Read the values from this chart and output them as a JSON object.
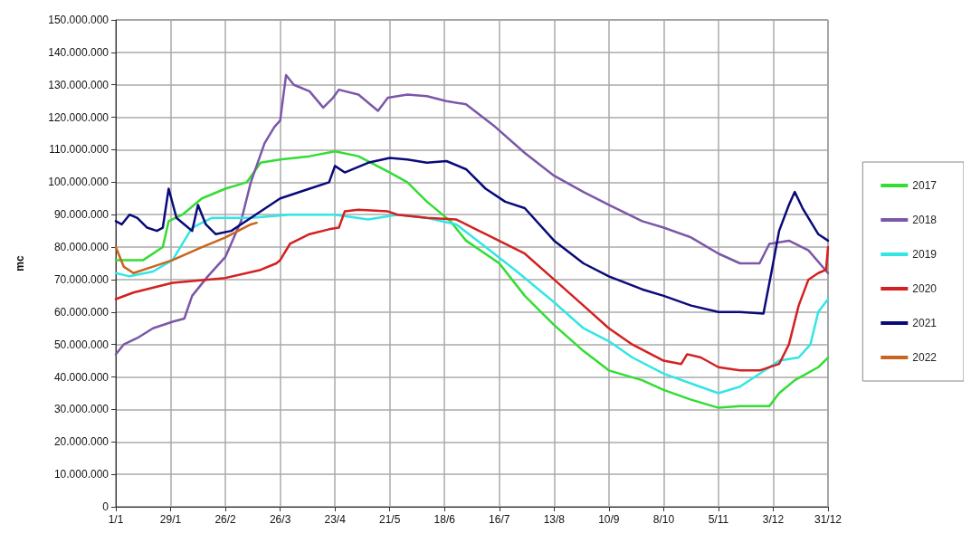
{
  "chart_data": {
    "type": "line",
    "ylabel": "mc",
    "grid": true,
    "legend": "right",
    "marker": "none",
    "line_style": "solid",
    "xlim": [
      "--01-01",
      "--12-31"
    ],
    "xticks": [
      {
        "value": "--01-01",
        "label": "1/1"
      },
      {
        "value": "--01-29",
        "label": "29/1"
      },
      {
        "value": "--02-26",
        "label": "26/2"
      },
      {
        "value": "--03-26",
        "label": "26/3"
      },
      {
        "value": "--04-23",
        "label": "23/4"
      },
      {
        "value": "--05-21",
        "label": "21/5"
      },
      {
        "value": "--06-18",
        "label": "18/6"
      },
      {
        "value": "--07-16",
        "label": "16/7"
      },
      {
        "value": "--08-13",
        "label": "13/8"
      },
      {
        "value": "--09-10",
        "label": "10/9"
      },
      {
        "value": "--10-08",
        "label": "8/10"
      },
      {
        "value": "--11-05",
        "label": "5/11"
      },
      {
        "value": "--12-03",
        "label": "3/12"
      },
      {
        "value": "--12-31",
        "label": "31/12"
      }
    ],
    "ylim": [
      0,
      150000000
    ],
    "yticks": [
      0,
      {
        "value": 10000000,
        "label": "10.000.000"
      },
      {
        "value": 20000000,
        "label": "20.000.000"
      },
      {
        "value": 30000000,
        "label": "30.000.000"
      },
      {
        "value": 40000000,
        "label": "40.000.000"
      },
      {
        "value": 50000000,
        "label": "50.000.000"
      },
      {
        "value": 60000000,
        "label": "60.000.000"
      },
      {
        "value": 70000000,
        "label": "70.000.000"
      },
      {
        "value": 80000000,
        "label": "80.000.000"
      },
      {
        "value": 90000000,
        "label": "90.000.000"
      },
      {
        "value": 100000000,
        "label": "100.000.000"
      },
      {
        "value": 110000000,
        "label": "110.000.000"
      },
      {
        "value": 120000000,
        "label": "120.000.000"
      },
      {
        "value": 130000000,
        "label": "130.000.000"
      },
      {
        "value": 140000000,
        "label": "140.000.000"
      },
      {
        "value": 150000000,
        "label": "150.000.000"
      }
    ],
    "series": [
      {
        "name": "2017",
        "color": "#33dd33",
        "x": [
          "--01-01",
          "--01-10",
          "--01-15",
          "--01-25",
          "--01-28",
          "--02-04",
          "--02-14",
          "--02-26",
          "--03-09",
          "--03-16",
          "--03-26",
          "--04-10",
          "--04-23",
          "--05-05",
          "--05-21",
          "--05-30",
          "--06-09",
          "--06-21",
          "--06-29",
          "--07-16",
          "--07-29",
          "--08-13",
          "--08-28",
          "--09-10",
          "--09-27",
          "--10-08",
          "--10-22",
          "--11-05",
          "--11-16",
          "--12-01",
          "--12-06",
          "--12-14",
          "--12-26",
          "--12-31"
        ],
        "values": [
          76000000,
          76000000,
          76000000,
          80000000,
          88000000,
          90000000,
          95000000,
          98000000,
          100000000,
          106000000,
          107000000,
          108000000,
          109500000,
          108000000,
          103000000,
          100000000,
          94000000,
          88000000,
          82000000,
          75000000,
          65000000,
          56000000,
          48000000,
          42000000,
          39000000,
          36000000,
          33000000,
          30500000,
          31000000,
          31000000,
          35000000,
          39000000,
          43000000,
          46000000
        ]
      },
      {
        "name": "2018",
        "color": "#7b57a8",
        "x": [
          "--01-01",
          "--01-05",
          "--01-12",
          "--01-20",
          "--01-30",
          "--02-05",
          "--02-09",
          "--02-17",
          "--02-26",
          "--03-06",
          "--03-11",
          "--03-18",
          "--03-23",
          "--03-26",
          "--03-29",
          "--04-02",
          "--04-10",
          "--04-17",
          "--04-22",
          "--04-25",
          "--05-05",
          "--05-15",
          "--05-20",
          "--05-30",
          "--06-09",
          "--06-19",
          "--06-29",
          "--07-14",
          "--07-29",
          "--08-13",
          "--08-28",
          "--09-10",
          "--09-27",
          "--10-08",
          "--10-22",
          "--11-05",
          "--11-16",
          "--11-26",
          "--12-01",
          "--12-11",
          "--12-21",
          "--12-31"
        ],
        "values": [
          47000000,
          50000000,
          52000000,
          55000000,
          57000000,
          58000000,
          65000000,
          71000000,
          77000000,
          88000000,
          100000000,
          112000000,
          117000000,
          119000000,
          133000000,
          130000000,
          128000000,
          123000000,
          126000000,
          128500000,
          127000000,
          122000000,
          126000000,
          127000000,
          126500000,
          125000000,
          124000000,
          117000000,
          109000000,
          102000000,
          97000000,
          93000000,
          88000000,
          86000000,
          83000000,
          78000000,
          75000000,
          75000000,
          81000000,
          82000000,
          79000000,
          72000000
        ]
      },
      {
        "name": "2019",
        "color": "#33e5e5",
        "x": [
          "--01-01",
          "--01-08",
          "--01-20",
          "--01-30",
          "--02-09",
          "--02-19",
          "--03-11",
          "--03-31",
          "--04-23",
          "--05-10",
          "--05-25",
          "--06-09",
          "--06-24",
          "--07-09",
          "--07-24",
          "--08-13",
          "--08-28",
          "--09-10",
          "--09-22",
          "--10-08",
          "--10-22",
          "--11-05",
          "--11-16",
          "--11-26",
          "--12-06",
          "--12-16",
          "--12-22",
          "--12-26",
          "--12-31"
        ],
        "values": [
          72000000,
          71000000,
          72500000,
          76000000,
          86000000,
          89000000,
          89000000,
          90000000,
          90000000,
          88500000,
          90000000,
          89000000,
          87000000,
          80000000,
          73000000,
          63000000,
          55000000,
          51000000,
          46000000,
          41000000,
          38000000,
          35000000,
          37000000,
          41000000,
          45000000,
          46000000,
          50000000,
          60000000,
          64000000
        ]
      },
      {
        "name": "2020",
        "color": "#d42020",
        "x": [
          "--01-01",
          "--01-10",
          "--01-30",
          "--02-26",
          "--03-16",
          "--03-24",
          "--03-26",
          "--03-31",
          "--04-10",
          "--04-20",
          "--04-25",
          "--04-28",
          "--05-05",
          "--05-20",
          "--05-25",
          "--06-09",
          "--06-24",
          "--07-09",
          "--07-19",
          "--07-29",
          "--08-13",
          "--08-28",
          "--09-10",
          "--09-22",
          "--10-08",
          "--10-17",
          "--10-20",
          "--10-27",
          "--11-05",
          "--11-16",
          "--11-26",
          "--12-06",
          "--12-11",
          "--12-16",
          "--12-21",
          "--12-26",
          "--12-30",
          "--12-31"
        ],
        "values": [
          64000000,
          66000000,
          69000000,
          70500000,
          73000000,
          75000000,
          76000000,
          81000000,
          84000000,
          85500000,
          86000000,
          91000000,
          91500000,
          91000000,
          90000000,
          89000000,
          88500000,
          84000000,
          81000000,
          78000000,
          70000000,
          62000000,
          55000000,
          50000000,
          45000000,
          44000000,
          47000000,
          46000000,
          43000000,
          42000000,
          42000000,
          44000000,
          50000000,
          62000000,
          70000000,
          72000000,
          73000000,
          80000000
        ]
      },
      {
        "name": "2021",
        "color": "#0a0a7a",
        "x": [
          "--01-01",
          "--01-04",
          "--01-08",
          "--01-12",
          "--01-17",
          "--01-22",
          "--01-25",
          "--01-28",
          "--02-01",
          "--02-05",
          "--02-09",
          "--02-12",
          "--02-16",
          "--02-21",
          "--03-01",
          "--03-11",
          "--03-26",
          "--04-10",
          "--04-20",
          "--04-23",
          "--04-28",
          "--05-10",
          "--05-21",
          "--05-30",
          "--06-09",
          "--06-19",
          "--06-29",
          "--07-09",
          "--07-19",
          "--07-29",
          "--08-13",
          "--08-28",
          "--09-10",
          "--09-27",
          "--10-08",
          "--10-22",
          "--11-05",
          "--11-16",
          "--11-28",
          "--12-02",
          "--12-06",
          "--12-11",
          "--12-14",
          "--12-18",
          "--12-26",
          "--12-31"
        ],
        "values": [
          88000000,
          87000000,
          90000000,
          89000000,
          86000000,
          85000000,
          86000000,
          98000000,
          89000000,
          87000000,
          85000000,
          93000000,
          87000000,
          84000000,
          85000000,
          89000000,
          95000000,
          98000000,
          100000000,
          105000000,
          103000000,
          106000000,
          107500000,
          107000000,
          106000000,
          106500000,
          104000000,
          98000000,
          94000000,
          92000000,
          82000000,
          75000000,
          71000000,
          67000000,
          65000000,
          62000000,
          60000000,
          60000000,
          59500000,
          72000000,
          85000000,
          93000000,
          97000000,
          92000000,
          84000000,
          82000000
        ]
      },
      {
        "name": "2022",
        "color": "#c8641e",
        "x": [
          "--01-01",
          "--01-05",
          "--01-10",
          "--01-20",
          "--01-30",
          "--02-14",
          "--02-26",
          "--03-11",
          "--03-14"
        ],
        "values": [
          80000000,
          74000000,
          72000000,
          74000000,
          76000000,
          80000000,
          83000000,
          87000000,
          87500000
        ]
      }
    ]
  }
}
